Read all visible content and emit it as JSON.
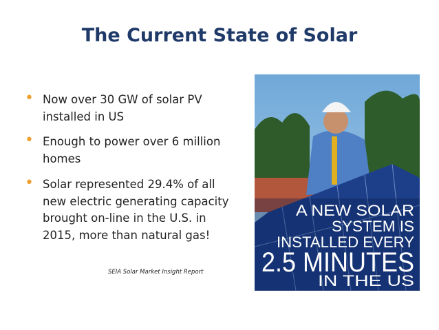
{
  "slide": {
    "title": "The Current State of Solar",
    "bullets": [
      "Now over 30 GW of solar PV installed in US",
      "Enough to power over 6 million homes",
      "Solar represented 29.4% of all new electric generating capacity brought on-line in the U.S. in 2015, more than natural gas!"
    ],
    "source": "SEIA Solar Market Insight Report",
    "image_text": [
      "A NEW SOLAR",
      "SYSTEM IS",
      "INSTALLED EVERY",
      "2.5 MINUTES",
      "IN THE US"
    ]
  }
}
